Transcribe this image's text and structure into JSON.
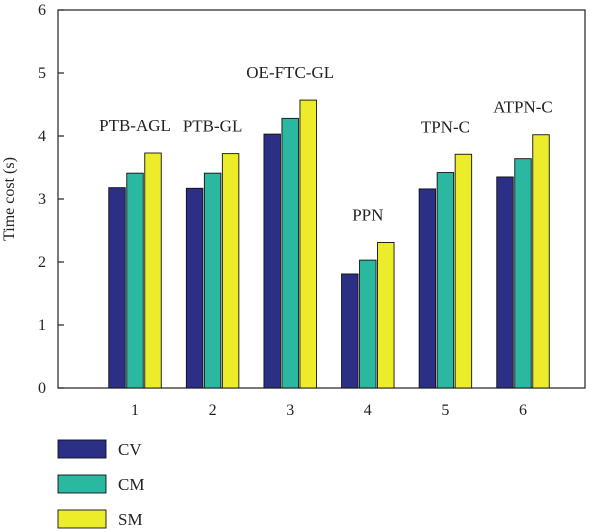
{
  "chart_data": {
    "type": "bar",
    "categories": [
      "1",
      "2",
      "3",
      "4",
      "5",
      "6"
    ],
    "group_labels": [
      "PTB-AGL",
      "PTB-GL",
      "OE-FTC-GL",
      "PPN",
      "TPN-C",
      "ATPN-C"
    ],
    "series": [
      {
        "name": "CV",
        "color": "#2b2f86",
        "values": [
          3.18,
          3.17,
          4.03,
          1.81,
          3.16,
          3.35
        ]
      },
      {
        "name": "CM",
        "color": "#2ab8a0",
        "values": [
          3.41,
          3.41,
          4.28,
          2.03,
          3.42,
          3.64
        ]
      },
      {
        "name": "SM",
        "color": "#ecec2a",
        "values": [
          3.73,
          3.72,
          4.57,
          2.31,
          3.71,
          4.02
        ]
      }
    ],
    "xlabel": "",
    "ylabel": "Time cost (s)",
    "ylim": [
      0,
      6
    ],
    "yticks": [
      "0",
      "1",
      "2",
      "3",
      "4",
      "5",
      "6"
    ],
    "grid": false,
    "legend_position": "bottom-left"
  }
}
